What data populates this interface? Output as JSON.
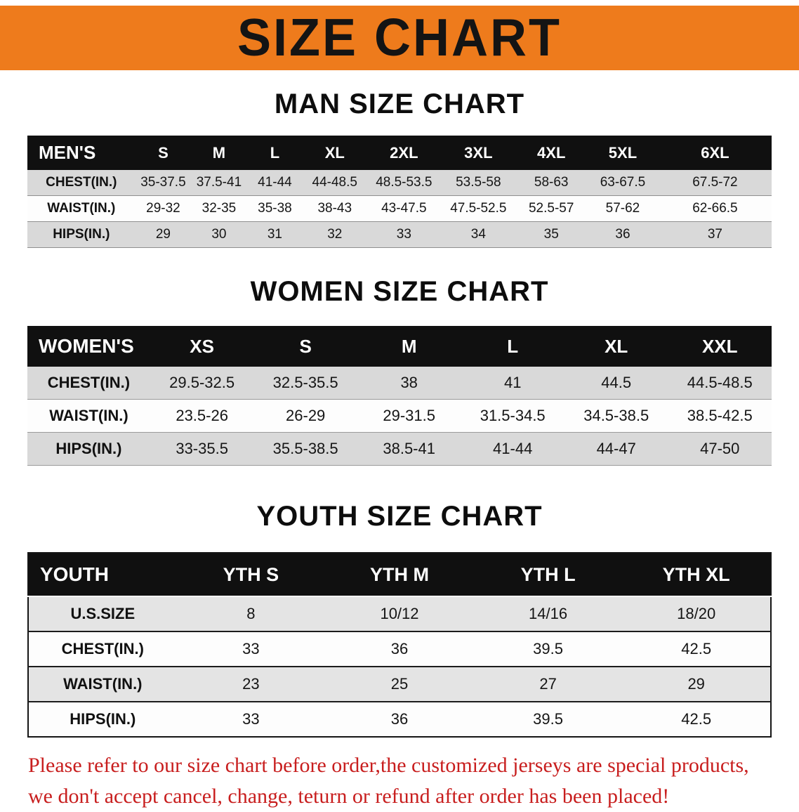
{
  "banner": {
    "title": "SIZE CHART"
  },
  "colors": {
    "banner_bg": "#ee7b1c",
    "table_header_bg": "#101010",
    "table_header_text": "#ffffff",
    "row_alt_bg": "#d9d9d9",
    "footer_text": "#c81e1e"
  },
  "sections": [
    {
      "heading": "MAN SIZE CHART",
      "table": {
        "header": [
          "MEN'S",
          "S",
          "M",
          "L",
          "XL",
          "2XL",
          "3XL",
          "4XL",
          "5XL",
          "6XL"
        ],
        "rows": [
          [
            "CHEST(IN.)",
            "35-37.5",
            "37.5-41",
            "41-44",
            "44-48.5",
            "48.5-53.5",
            "53.5-58",
            "58-63",
            "63-67.5",
            "67.5-72"
          ],
          [
            "WAIST(IN.)",
            "29-32",
            "32-35",
            "35-38",
            "38-43",
            "43-47.5",
            "47.5-52.5",
            "52.5-57",
            "57-62",
            "62-66.5"
          ],
          [
            "HIPS(IN.)",
            "29",
            "30",
            "31",
            "32",
            "33",
            "34",
            "35",
            "36",
            "37"
          ]
        ]
      }
    },
    {
      "heading": "WOMEN SIZE CHART",
      "table": {
        "header": [
          "WOMEN'S",
          "XS",
          "S",
          "M",
          "L",
          "XL",
          "XXL"
        ],
        "rows": [
          [
            "CHEST(IN.)",
            "29.5-32.5",
            "32.5-35.5",
            "38",
            "41",
            "44.5",
            "44.5-48.5"
          ],
          [
            "WAIST(IN.)",
            "23.5-26",
            "26-29",
            "29-31.5",
            "31.5-34.5",
            "34.5-38.5",
            "38.5-42.5"
          ],
          [
            "HIPS(IN.)",
            "33-35.5",
            "35.5-38.5",
            "38.5-41",
            "41-44",
            "44-47",
            "47-50"
          ]
        ]
      }
    },
    {
      "heading": "YOUTH SIZE CHART",
      "table": {
        "header": [
          "YOUTH",
          "YTH S",
          "YTH M",
          "YTH L",
          "YTH XL"
        ],
        "rows": [
          [
            "U.S.SIZE",
            "8",
            "10/12",
            "14/16",
            "18/20"
          ],
          [
            "CHEST(IN.)",
            "33",
            "36",
            "39.5",
            "42.5"
          ],
          [
            "WAIST(IN.)",
            "23",
            "25",
            "27",
            "29"
          ],
          [
            "HIPS(IN.)",
            "33",
            "36",
            "39.5",
            "42.5"
          ]
        ]
      }
    }
  ],
  "footer": {
    "line1": "Please refer to our size chart before order,the customized jerseys are special products,",
    "line2": "we don't accept cancel, change, teturn or refund after order has been placed!"
  }
}
